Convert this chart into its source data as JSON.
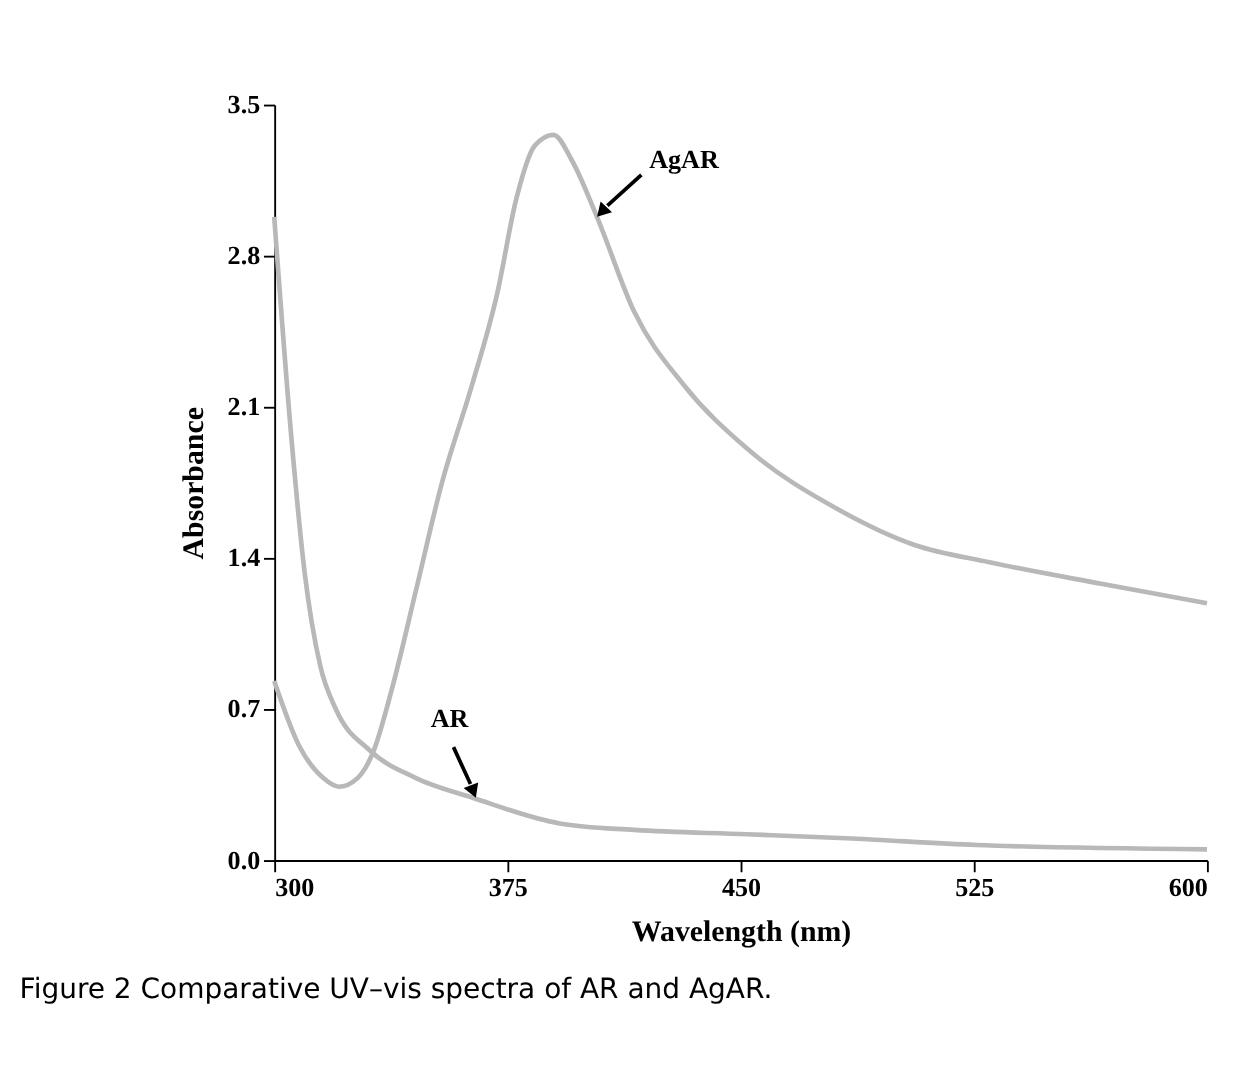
{
  "chart_data": {
    "type": "line",
    "xlabel": "Wavelength (nm)",
    "ylabel": "Absorbance",
    "xlim": [
      300,
      600
    ],
    "ylim": [
      0,
      3.5
    ],
    "xticks": [
      300,
      375,
      450,
      525,
      600
    ],
    "yticks": [
      {
        "value": 0,
        "label": "0.0"
      },
      0.7,
      1.4,
      2.1,
      2.8,
      3.5
    ],
    "grid": false,
    "marker": "none",
    "line_style": "solid",
    "series": [
      {
        "color": "#b8b8b8",
        "x": [
          300,
          305.8,
          309.8,
          314.8,
          319.8,
          330.6,
          345.6,
          363.6,
          391.8,
          415.8,
          451.8,
          485.8,
          525.8,
          600
        ],
        "values": [
          2.98,
          1.91,
          1.33,
          0.9,
          0.7,
          0.51,
          0.38,
          0.29,
          0.17,
          0.14,
          0.12,
          0.1,
          0.07,
          0.05
        ]
      },
      {
        "color": "#b8b8b8",
        "x": [
          300,
          308,
          315.8,
          320.8,
          326.8,
          331.8,
          337.8,
          345.6,
          353.8,
          363.6,
          371.8,
          377.8,
          383.8,
          389.8,
          395.8,
          403.8,
          415.8,
          431.8,
          451.8,
          482,
          506,
          530,
          566,
          600
        ],
        "values": [
          0.83,
          0.53,
          0.38,
          0.34,
          0.38,
          0.5,
          0.79,
          1.25,
          1.74,
          2.2,
          2.63,
          3.06,
          3.31,
          3.36,
          3.24,
          2.98,
          2.54,
          2.2,
          1.91,
          1.62,
          1.46,
          1.38,
          1.28,
          1.19
        ]
      }
    ],
    "annotations": [
      {
        "text": "AgAR",
        "x": 403.8,
        "y": 2.98
      },
      {
        "text": "AR",
        "x": 364.8,
        "y": 0.29
      },
      "Figure 2 Comparative UV–vis spectra of AR and AgAR."
    ]
  }
}
